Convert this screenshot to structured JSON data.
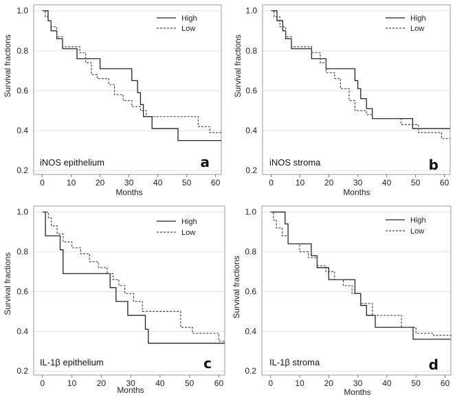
{
  "chart_data": [
    {
      "type": "line",
      "panel": "a",
      "annotation": "iNOS epithelium",
      "xlabel": "Months",
      "ylabel": "Survival fractions",
      "xlim": [
        -3,
        62
      ],
      "ylim": [
        0.18,
        1.03
      ],
      "xticks": [
        0,
        10,
        20,
        30,
        40,
        50,
        60
      ],
      "yticks": [
        0.2,
        0.4,
        0.6,
        0.8,
        1.0
      ],
      "legend": [
        "High",
        "Low"
      ],
      "series": [
        {
          "name": "High",
          "style": "solid",
          "x": [
            0,
            2,
            3,
            5,
            7,
            12,
            20,
            31,
            33,
            34,
            35,
            38,
            47,
            62
          ],
          "y": [
            1.0,
            0.95,
            0.9,
            0.86,
            0.81,
            0.76,
            0.71,
            0.65,
            0.59,
            0.53,
            0.47,
            0.41,
            0.35,
            0.35
          ]
        },
        {
          "name": "Low",
          "style": "dashed",
          "x": [
            0,
            1,
            2,
            3,
            5,
            7,
            13,
            15,
            17,
            19,
            23,
            25,
            28,
            31,
            34,
            36,
            40,
            54,
            58,
            62
          ],
          "y": [
            1.0,
            0.97,
            0.95,
            0.92,
            0.87,
            0.82,
            0.79,
            0.74,
            0.68,
            0.66,
            0.63,
            0.58,
            0.55,
            0.52,
            0.5,
            0.47,
            0.47,
            0.42,
            0.39,
            0.39
          ]
        }
      ]
    },
    {
      "type": "line",
      "panel": "b",
      "annotation": "iNOS stroma",
      "xlabel": "Months",
      "ylabel": "Survival fractions",
      "xlim": [
        -3,
        62
      ],
      "ylim": [
        0.18,
        1.03
      ],
      "xticks": [
        0,
        10,
        20,
        30,
        40,
        50,
        60
      ],
      "yticks": [
        0.2,
        0.4,
        0.6,
        0.8,
        1.0
      ],
      "legend": [
        "High",
        "Low"
      ],
      "series": [
        {
          "name": "High",
          "style": "solid",
          "x": [
            0,
            2,
            4,
            5,
            7,
            14,
            19,
            29,
            30,
            31,
            33,
            35,
            49,
            62
          ],
          "y": [
            1.0,
            0.95,
            0.9,
            0.86,
            0.81,
            0.76,
            0.71,
            0.65,
            0.61,
            0.56,
            0.51,
            0.46,
            0.41,
            0.41
          ]
        },
        {
          "name": "Low",
          "style": "dashed",
          "x": [
            0,
            1,
            3,
            5,
            7,
            14,
            17,
            19,
            22,
            24,
            27,
            29,
            33,
            35,
            45,
            51,
            59,
            62
          ],
          "y": [
            1.0,
            0.97,
            0.92,
            0.87,
            0.82,
            0.79,
            0.74,
            0.69,
            0.66,
            0.61,
            0.55,
            0.5,
            0.48,
            0.46,
            0.43,
            0.39,
            0.36,
            0.36
          ]
        }
      ]
    },
    {
      "type": "line",
      "panel": "c",
      "annotation": "IL-1β epithelium",
      "xlabel": "Months",
      "ylabel": "Survival fractions",
      "xlim": [
        -3,
        62
      ],
      "ylim": [
        0.18,
        1.03
      ],
      "xticks": [
        0,
        10,
        20,
        30,
        40,
        50,
        60
      ],
      "yticks": [
        0.2,
        0.4,
        0.6,
        0.8,
        1.0
      ],
      "legend": [
        "High",
        "Low"
      ],
      "series": [
        {
          "name": "High",
          "style": "solid",
          "x": [
            0,
            1,
            6,
            7,
            23,
            25,
            29,
            35,
            36,
            62
          ],
          "y": [
            1.0,
            0.88,
            0.81,
            0.69,
            0.62,
            0.55,
            0.48,
            0.41,
            0.34,
            0.34
          ]
        },
        {
          "name": "Low",
          "style": "dashed",
          "x": [
            0,
            2,
            3,
            5,
            7,
            10,
            13,
            16,
            19,
            22,
            24,
            26,
            28,
            31,
            34,
            38,
            47,
            51,
            60,
            62
          ],
          "y": [
            1.0,
            0.97,
            0.93,
            0.89,
            0.85,
            0.82,
            0.79,
            0.75,
            0.72,
            0.69,
            0.66,
            0.63,
            0.59,
            0.55,
            0.5,
            0.5,
            0.42,
            0.39,
            0.35,
            0.35
          ]
        }
      ]
    },
    {
      "type": "line",
      "panel": "d",
      "annotation": "IL-1β stroma",
      "xlabel": "Months",
      "ylabel": "Survival fractions",
      "xlim": [
        -3,
        62
      ],
      "ylim": [
        0.18,
        1.03
      ],
      "xticks": [
        0,
        10,
        20,
        30,
        40,
        50,
        60
      ],
      "yticks": [
        0.2,
        0.4,
        0.6,
        0.8,
        1.0
      ],
      "legend": [
        "High",
        "Low"
      ],
      "series": [
        {
          "name": "High",
          "style": "solid",
          "x": [
            0,
            5,
            6,
            14,
            16,
            20,
            29,
            31,
            33,
            36,
            49,
            60,
            62
          ],
          "y": [
            1.0,
            0.94,
            0.84,
            0.78,
            0.72,
            0.66,
            0.59,
            0.53,
            0.48,
            0.42,
            0.36,
            0.36,
            0.36
          ]
        },
        {
          "name": "Low",
          "style": "dashed",
          "x": [
            0,
            1,
            2,
            4,
            6,
            10,
            13,
            16,
            19,
            22,
            25,
            28,
            31,
            35,
            45,
            50,
            56,
            62
          ],
          "y": [
            1.0,
            0.96,
            0.92,
            0.88,
            0.84,
            0.8,
            0.77,
            0.73,
            0.7,
            0.66,
            0.63,
            0.59,
            0.54,
            0.48,
            0.42,
            0.39,
            0.38,
            0.37
          ]
        }
      ]
    }
  ]
}
